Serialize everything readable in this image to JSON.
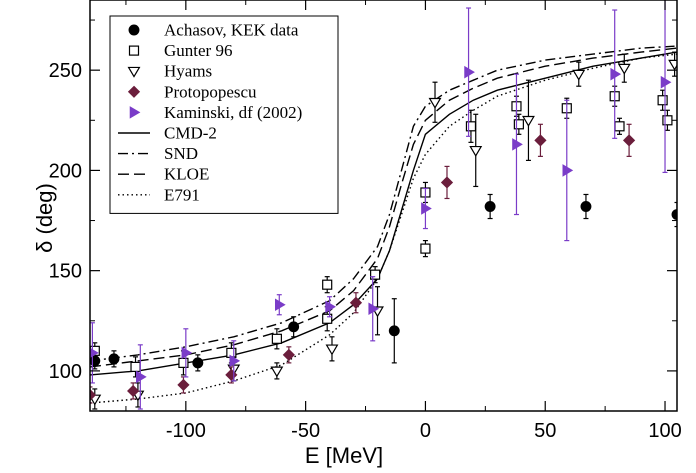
{
  "chart_data": {
    "type": "scatter",
    "xlabel": "E [MeV]",
    "ylabel": "δ (deg)",
    "xlim": [
      -140,
      105
    ],
    "ylim": [
      80,
      285
    ],
    "x_ticks": [
      -100,
      -50,
      0,
      50,
      100
    ],
    "x_tick_labels": [
      "-100",
      "-50",
      "0",
      "50",
      "100"
    ],
    "y_ticks": [
      100,
      150,
      200,
      250
    ],
    "y_tick_labels": [
      "100",
      "150",
      "200",
      "250"
    ],
    "legend_position": "top-left",
    "colors": {
      "black": "#000000",
      "maroon": "#6b1e3c",
      "purple": "#7a3cc8"
    },
    "series": [
      {
        "name": "Achasov, KEK data",
        "kind": "points",
        "marker": "circle-filled",
        "color": "#000000",
        "points": [
          {
            "x": -138,
            "y": 105,
            "err": 4
          },
          {
            "x": -130,
            "y": 106,
            "err": 4
          },
          {
            "x": -95,
            "y": 104,
            "err": 4
          },
          {
            "x": -55,
            "y": 122,
            "err": 5
          },
          {
            "x": -13,
            "y": 120,
            "err": 16
          },
          {
            "x": 27,
            "y": 182,
            "err": 6
          },
          {
            "x": 67,
            "y": 182,
            "err": 6
          },
          {
            "x": 105,
            "y": 178,
            "err": 6
          }
        ]
      },
      {
        "name": "Gunter 96",
        "kind": "points",
        "marker": "square-open",
        "color": "#000000",
        "points": [
          {
            "x": -138,
            "y": 110,
            "err": 4
          },
          {
            "x": -121,
            "y": 102,
            "err": 5
          },
          {
            "x": -101,
            "y": 104,
            "err": 6
          },
          {
            "x": -81,
            "y": 109,
            "err": 5
          },
          {
            "x": -62,
            "y": 116,
            "err": 5
          },
          {
            "x": -41,
            "y": 143,
            "err": 4
          },
          {
            "x": -41,
            "y": 126,
            "err": 6
          },
          {
            "x": -21,
            "y": 148,
            "err": 4
          },
          {
            "x": 0,
            "y": 161,
            "err": 4
          },
          {
            "x": 0,
            "y": 189,
            "err": 5
          },
          {
            "x": 19,
            "y": 222,
            "err": 8
          },
          {
            "x": 38,
            "y": 232,
            "err": 5
          },
          {
            "x": 39,
            "y": 223,
            "err": 5
          },
          {
            "x": 59,
            "y": 231,
            "err": 5
          },
          {
            "x": 79,
            "y": 237,
            "err": 5
          },
          {
            "x": 81,
            "y": 222,
            "err": 4
          },
          {
            "x": 99,
            "y": 235,
            "err": 5
          },
          {
            "x": 101,
            "y": 225,
            "err": 5
          }
        ]
      },
      {
        "name": "Hyams",
        "kind": "points",
        "marker": "triangle-down-open",
        "color": "#000000",
        "points": [
          {
            "x": -138,
            "y": 86,
            "err": 5
          },
          {
            "x": -120,
            "y": 88,
            "err": 6
          },
          {
            "x": -80,
            "y": 101,
            "err": 6
          },
          {
            "x": -62,
            "y": 100,
            "err": 4
          },
          {
            "x": -39,
            "y": 111,
            "err": 6
          },
          {
            "x": -20,
            "y": 130,
            "err": 12
          },
          {
            "x": 4,
            "y": 234,
            "err": 10
          },
          {
            "x": 21,
            "y": 210,
            "err": 18
          },
          {
            "x": 43,
            "y": 225,
            "err": 20
          },
          {
            "x": 64,
            "y": 248,
            "err": 6
          },
          {
            "x": 83,
            "y": 251,
            "err": 7
          },
          {
            "x": 104,
            "y": 253,
            "err": 6
          }
        ]
      },
      {
        "name": "Protopopescu",
        "kind": "points",
        "marker": "diamond-filled",
        "color": "#6b1e3c",
        "points": [
          {
            "x": -140,
            "y": 88,
            "err": 4
          },
          {
            "x": -122,
            "y": 90,
            "err": 4
          },
          {
            "x": -101,
            "y": 93,
            "err": 4
          },
          {
            "x": -81,
            "y": 98,
            "err": 4
          },
          {
            "x": -57,
            "y": 108,
            "err": 4
          },
          {
            "x": -29,
            "y": 134,
            "err": 5
          },
          {
            "x": 9,
            "y": 194,
            "err": 8
          },
          {
            "x": 48,
            "y": 215,
            "err": 8
          },
          {
            "x": 85,
            "y": 215,
            "err": 8
          }
        ]
      },
      {
        "name": "Kaminski, df (2002)",
        "kind": "points",
        "marker": "triangle-right-filled",
        "color": "#7a3cc8",
        "points": [
          {
            "x": -139,
            "y": 109,
            "err": 15
          },
          {
            "x": -119,
            "y": 97,
            "err": 16
          },
          {
            "x": -100,
            "y": 109,
            "err": 12
          },
          {
            "x": -80,
            "y": 105,
            "err": 10
          },
          {
            "x": -61,
            "y": 133,
            "err": 5
          },
          {
            "x": -40,
            "y": 132,
            "err": 5
          },
          {
            "x": -22,
            "y": 131,
            "err": 16
          },
          {
            "x": 0,
            "y": 181,
            "err": 10
          },
          {
            "x": 18,
            "y": 249,
            "err": 32
          },
          {
            "x": 38,
            "y": 213,
            "err": 35
          },
          {
            "x": 59,
            "y": 200,
            "err": 35
          },
          {
            "x": 79,
            "y": 248,
            "err": 32
          },
          {
            "x": 100,
            "y": 244,
            "err": 45
          }
        ]
      },
      {
        "name": "CMD-2",
        "kind": "line",
        "dash": "solid",
        "color": "#000000",
        "x": [
          -140,
          -120,
          -100,
          -80,
          -60,
          -40,
          -30,
          -20,
          -15,
          -10,
          -5,
          0,
          10,
          20,
          30,
          50,
          70,
          90,
          105
        ],
        "y": [
          98,
          100,
          104,
          108,
          114,
          124,
          133,
          146,
          160,
          180,
          200,
          218,
          228,
          235,
          240,
          246,
          252,
          256,
          259
        ]
      },
      {
        "name": "SND",
        "kind": "line",
        "dash": "dashdot",
        "color": "#000000",
        "x": [
          -140,
          -120,
          -100,
          -80,
          -60,
          -40,
          -30,
          -20,
          -15,
          -10,
          -5,
          0,
          10,
          20,
          30,
          50,
          70,
          90,
          105
        ],
        "y": [
          105,
          108,
          112,
          117,
          124,
          135,
          146,
          162,
          178,
          200,
          222,
          232,
          240,
          245,
          250,
          255,
          258,
          261,
          262
        ]
      },
      {
        "name": "KLOE",
        "kind": "line",
        "dash": "dashed",
        "color": "#000000",
        "x": [
          -140,
          -120,
          -100,
          -80,
          -60,
          -40,
          -30,
          -20,
          -15,
          -10,
          -5,
          0,
          10,
          20,
          30,
          50,
          70,
          90,
          105
        ],
        "y": [
          102,
          105,
          108,
          113,
          120,
          130,
          140,
          156,
          172,
          193,
          213,
          225,
          235,
          241,
          246,
          252,
          256,
          259,
          261
        ]
      },
      {
        "name": "E791",
        "kind": "line",
        "dash": "dotted",
        "color": "#000000",
        "x": [
          -140,
          -120,
          -100,
          -80,
          -60,
          -40,
          -30,
          -20,
          -15,
          -10,
          -5,
          0,
          10,
          20,
          30,
          50,
          70,
          90,
          105
        ],
        "y": [
          84,
          86,
          89,
          95,
          103,
          118,
          129,
          146,
          160,
          178,
          196,
          208,
          222,
          230,
          237,
          245,
          251,
          256,
          258
        ]
      }
    ]
  }
}
